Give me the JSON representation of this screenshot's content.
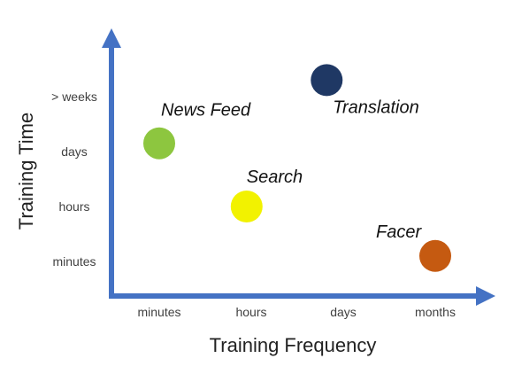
{
  "chart_data": {
    "type": "scatter",
    "xlabel": "Training Frequency",
    "ylabel": "Training Time",
    "x_categories": [
      "minutes",
      "hours",
      "days",
      "months"
    ],
    "y_categories": [
      "minutes",
      "hours",
      "days",
      "> weeks"
    ],
    "points": [
      {
        "label": "News Feed",
        "x": 0.0,
        "y": 2.15,
        "color": "#8dc63f"
      },
      {
        "label": "Search",
        "x": 0.95,
        "y": 1.0,
        "color": "#f2f200"
      },
      {
        "label": "Translation",
        "x": 1.82,
        "y": 3.3,
        "color": "#1f3864"
      },
      {
        "label": "Facer",
        "x": 3.0,
        "y": 0.1,
        "color": "#c55a11"
      }
    ],
    "axis_color": "#4472c4"
  }
}
